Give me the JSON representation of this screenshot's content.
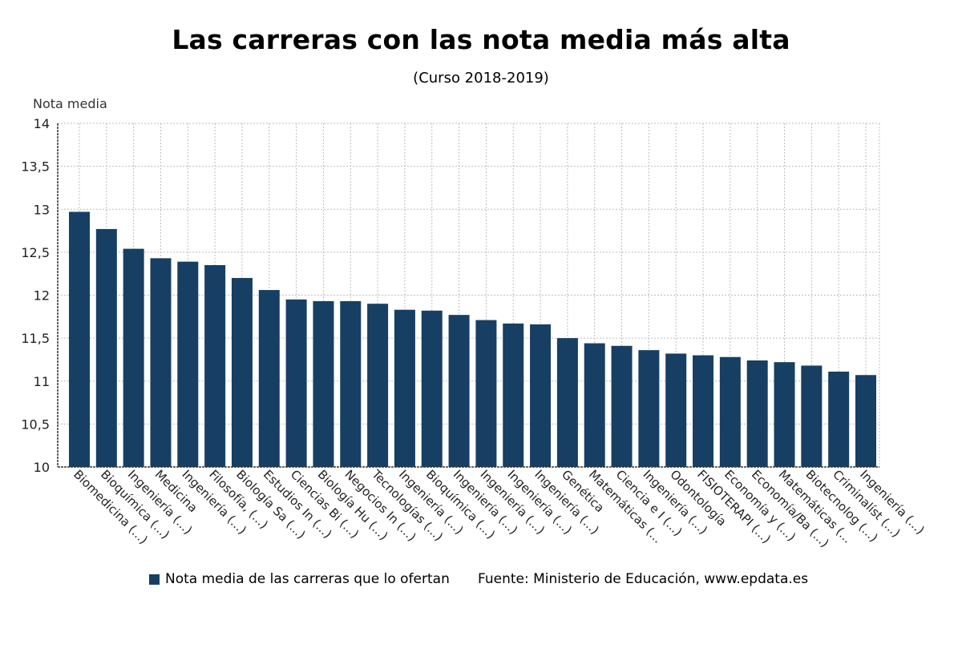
{
  "title": "Las carreras con las nota media más alta",
  "subtitle": "(Curso 2018-2019)",
  "legend_label": "Nota media de las carreras que lo ofertan",
  "source": "Fuente: Ministerio de Educación, www.epdata.es",
  "colors": {
    "bar": "#173f64",
    "grid": "#bdbdbd",
    "axis": "#333333"
  },
  "chart_data": {
    "type": "bar",
    "ylabel": "Nota media",
    "xlabel": "",
    "ylim": [
      10,
      14
    ],
    "yticks": [
      "10",
      "10,5",
      "11",
      "11,5",
      "12",
      "12,5",
      "13",
      "13,5",
      "14"
    ],
    "grid": true,
    "legend_position": "bottom",
    "categories": [
      "Biomedicina (...)",
      "Bioquímica (...)",
      "Ingeniería (...)",
      "Medicina",
      "Ingeniería (...)",
      "Filosofía, (...)",
      "Biología Sa (...)",
      "Estudios In (...)",
      "Ciencias Bi (...)",
      "Biología Hu (...)",
      "Negocios In (...)",
      "Tecnologías (...)",
      "Ingeniería (...)",
      "Bioquímica (...)",
      "Ingeniería (...)",
      "Ingeniería (...)",
      "Ingeniería (...)",
      "Ingeniería (...)",
      "Genética",
      "Matemáticas (...",
      "Ciencia e I (...)",
      "Ingeniería (...)",
      "Odontología",
      "FISIOTERAPI (...)",
      "Economía y (...)",
      "Economía/Ba (...)",
      "Matemáticas (...",
      "Biotecnolog (...)",
      "Criminalíst (...)",
      "Ingeniería (...)"
    ],
    "series": [
      {
        "name": "Nota media de las carreras que lo ofertan",
        "values": [
          12.97,
          12.77,
          12.54,
          12.43,
          12.39,
          12.35,
          12.2,
          12.06,
          11.95,
          11.93,
          11.93,
          11.9,
          11.83,
          11.82,
          11.77,
          11.71,
          11.67,
          11.66,
          11.5,
          11.44,
          11.41,
          11.36,
          11.32,
          11.3,
          11.28,
          11.24,
          11.22,
          11.18,
          11.11,
          11.07
        ]
      }
    ]
  }
}
